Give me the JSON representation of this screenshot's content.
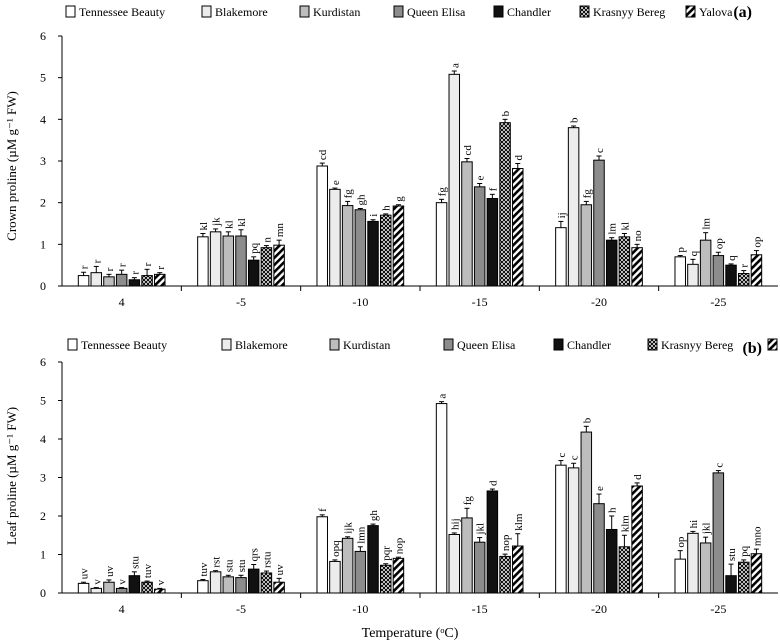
{
  "chart_data": [
    {
      "type": "bar",
      "panel_label": "(a)",
      "title": "",
      "ylabel": "Crown proline (µM g⁻¹ FW)",
      "xlabel": "",
      "ylim": [
        0,
        6
      ],
      "yticks": [
        "0",
        "1",
        "2",
        "3",
        "4",
        "5",
        "6"
      ],
      "categories": [
        "4",
        "-5",
        "-10",
        "-15",
        "-20",
        "-25"
      ],
      "series": [
        {
          "name": "Tennessee Beauty",
          "values": [
            0.25,
            1.18,
            2.88,
            2.0,
            1.4,
            0.7
          ],
          "errors": [
            0.08,
            0.08,
            0.07,
            0.08,
            0.15,
            0.03
          ],
          "letters": [
            "r",
            "kl",
            "cd",
            "fg",
            "ij",
            "p"
          ]
        },
        {
          "name": "Blakemore",
          "values": [
            0.32,
            1.3,
            2.32,
            5.08,
            3.8,
            0.52
          ],
          "errors": [
            0.15,
            0.07,
            0.03,
            0.08,
            0.04,
            0.12
          ],
          "letters": [
            "r",
            "jk",
            "e",
            "a",
            "b",
            "q"
          ]
        },
        {
          "name": "Kurdistan",
          "values": [
            0.22,
            1.2,
            1.93,
            2.98,
            1.95,
            1.1
          ],
          "errors": [
            0.06,
            0.1,
            0.1,
            0.08,
            0.08,
            0.18
          ],
          "letters": [
            "r",
            "kl",
            "fg",
            "cd",
            "fg",
            "lm"
          ]
        },
        {
          "name": "Queen Elisa",
          "values": [
            0.28,
            1.2,
            1.83,
            2.38,
            3.02,
            0.73
          ],
          "errors": [
            0.1,
            0.15,
            0.03,
            0.08,
            0.1,
            0.08
          ],
          "letters": [
            "r",
            "kl",
            "gh",
            "e",
            "c",
            "op"
          ]
        },
        {
          "name": "Chandler",
          "values": [
            0.15,
            0.62,
            1.55,
            2.1,
            1.1,
            0.5
          ],
          "errors": [
            0.05,
            0.08,
            0.04,
            0.1,
            0.06,
            0.03
          ],
          "letters": [
            "r",
            "pq",
            "i",
            "f",
            "lm",
            "q"
          ]
        },
        {
          "name": "Krasnyy Bereg",
          "values": [
            0.25,
            0.92,
            1.7,
            3.92,
            1.18,
            0.3
          ],
          "errors": [
            0.15,
            0.05,
            0.03,
            0.08,
            0.08,
            0.07
          ],
          "letters": [
            "r",
            "n",
            "h",
            "b",
            "kl",
            "r"
          ]
        },
        {
          "name": "Yalova",
          "values": [
            0.28,
            0.98,
            1.92,
            2.82,
            0.92,
            0.75
          ],
          "errors": [
            0.04,
            0.12,
            0.03,
            0.12,
            0.08,
            0.1
          ],
          "letters": [
            "r",
            "mn",
            "g",
            "d",
            "no",
            "op"
          ]
        }
      ]
    },
    {
      "type": "bar",
      "panel_label": "(b)",
      "title": "",
      "ylabel": "Leaf proline (µM g⁻¹ FW)",
      "xlabel": "Temperature (ᵒC)",
      "ylim": [
        0,
        6
      ],
      "yticks": [
        "0",
        "1",
        "2",
        "3",
        "4",
        "5",
        "6"
      ],
      "categories": [
        "4",
        "-5",
        "-10",
        "-15",
        "-20",
        "-25"
      ],
      "series": [
        {
          "name": "Tennessee Beauty",
          "values": [
            0.25,
            0.32,
            1.98,
            4.92,
            3.32,
            0.88
          ],
          "errors": [
            0.03,
            0.03,
            0.05,
            0.05,
            0.12,
            0.22
          ],
          "letters": [
            "uv",
            "tuv",
            "f",
            "a",
            "c",
            "op"
          ]
        },
        {
          "name": "Blakemore",
          "values": [
            0.12,
            0.55,
            0.82,
            1.52,
            3.25,
            1.55
          ],
          "errors": [
            0.02,
            0.03,
            0.04,
            0.04,
            0.12,
            0.05
          ],
          "letters": [
            "v",
            "rst",
            "opq",
            "hij",
            "c",
            "hi"
          ]
        },
        {
          "name": "Kurdistan",
          "values": [
            0.28,
            0.42,
            1.42,
            1.95,
            4.18,
            1.3
          ],
          "errors": [
            0.06,
            0.04,
            0.04,
            0.25,
            0.15,
            0.15
          ],
          "letters": [
            "uv",
            "stu",
            "ijk",
            "fg",
            "b",
            "jkl"
          ]
        },
        {
          "name": "Queen Elisa",
          "values": [
            0.12,
            0.4,
            1.08,
            1.32,
            2.32,
            3.12
          ],
          "errors": [
            0.02,
            0.06,
            0.12,
            0.12,
            0.25,
            0.06
          ],
          "letters": [
            "v",
            "stu",
            "lmn",
            "jkl",
            "e",
            "c"
          ]
        },
        {
          "name": "Chandler",
          "values": [
            0.45,
            0.62,
            1.75,
            2.65,
            1.65,
            0.45
          ],
          "errors": [
            0.1,
            0.12,
            0.04,
            0.05,
            0.35,
            0.3
          ],
          "letters": [
            "stu",
            "qrs",
            "gh",
            "d",
            "h",
            "stu"
          ]
        },
        {
          "name": "Krasnyy Bereg",
          "values": [
            0.28,
            0.52,
            0.72,
            0.95,
            1.2,
            0.8
          ],
          "errors": [
            0.03,
            0.05,
            0.04,
            0.06,
            0.3,
            0.06
          ],
          "letters": [
            "tuv",
            "rstu",
            "pqr",
            "nop",
            "klm",
            "pq"
          ]
        },
        {
          "name": "Yalova",
          "values": [
            0.1,
            0.28,
            0.9,
            1.22,
            2.78,
            1.02
          ],
          "errors": [
            0.02,
            0.1,
            0.03,
            0.32,
            0.08,
            0.12
          ],
          "letters": [
            "v",
            "uv",
            "nop",
            "klm",
            "d",
            "mno"
          ]
        }
      ]
    }
  ],
  "legend": [
    "Tennessee Beauty",
    "Blakemore",
    "Kurdistan",
    "Queen Elisa",
    "Chandler",
    "Krasnyy Bereg",
    "Yalova"
  ],
  "colors": {
    "tennessee_beauty": "#ffffff",
    "blakemore": "#ececec",
    "kurdistan": "#bdbdbd",
    "queen_elisa": "#8c8c8c",
    "chandler": "#111111",
    "axis": "#000000"
  }
}
